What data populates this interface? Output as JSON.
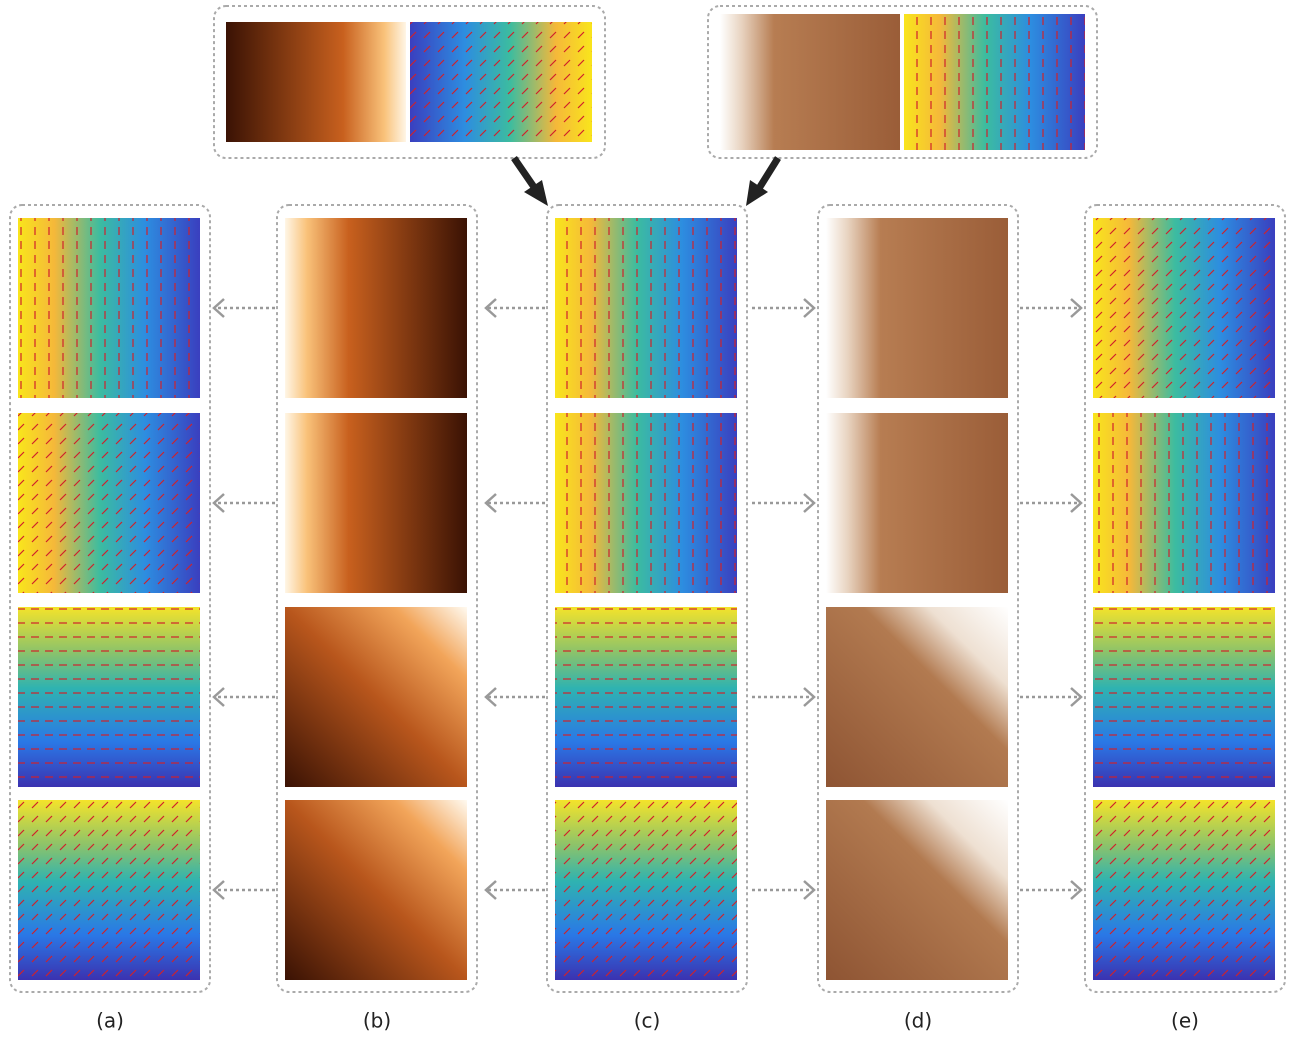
{
  "figure": {
    "labels": [
      "(a)",
      "(b)",
      "(c)",
      "(d)",
      "(e)"
    ]
  }
}
